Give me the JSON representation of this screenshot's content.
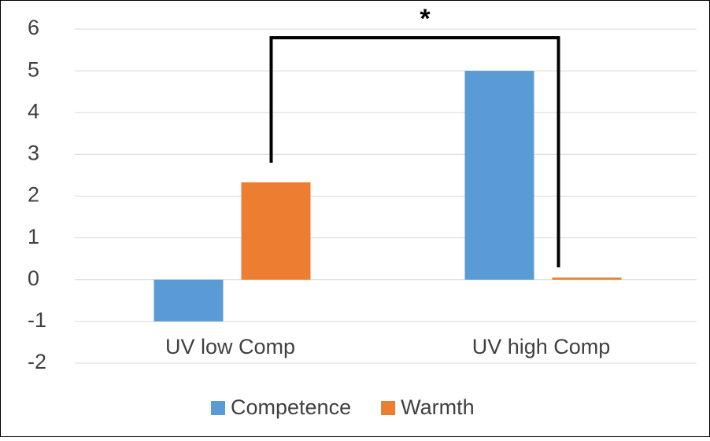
{
  "chart_data": {
    "type": "bar",
    "categories": [
      "UV low Comp",
      "UV high Comp"
    ],
    "series": [
      {
        "name": "Competence",
        "color": "#5b9bd5",
        "values": [
          -1.0,
          5.0
        ]
      },
      {
        "name": "Warmth",
        "color": "#ed7d31",
        "values": [
          2.33,
          0.05
        ]
      }
    ],
    "ylim": [
      -2,
      6
    ],
    "yticks": [
      -2,
      -1,
      0,
      1,
      2,
      3,
      4,
      5,
      6
    ],
    "grid": true,
    "legend": "bottom",
    "annotation": "*"
  }
}
